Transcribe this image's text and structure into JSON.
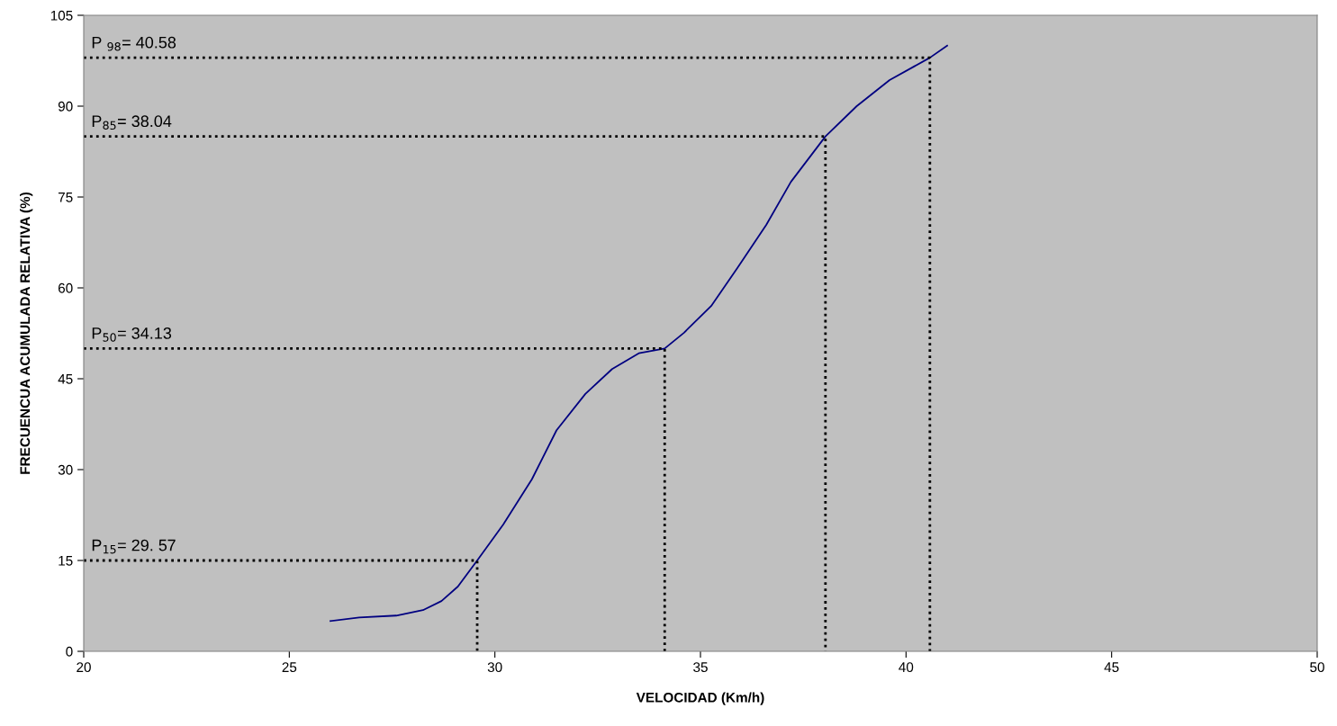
{
  "chart_data": {
    "type": "line",
    "xlabel": "VELOCIDAD (Km/h)",
    "ylabel": "FRECUENCUA ACUMULADA RELATIVA (%)",
    "xlim": [
      20,
      50
    ],
    "xticks": [
      20,
      25,
      30,
      35,
      40,
      45,
      50
    ],
    "ylim": [
      0,
      105
    ],
    "yticks": [
      0,
      15,
      30,
      45,
      60,
      75,
      90,
      105
    ],
    "grid": false,
    "legend": false,
    "marker": "none",
    "series": [
      {
        "color": "#000080",
        "line_style": "solid",
        "x": [
          26.0,
          26.7,
          27.6,
          28.25,
          28.7,
          29.1,
          29.57,
          30.2,
          30.9,
          31.5,
          32.2,
          32.85,
          33.5,
          34.13,
          34.6,
          35.26,
          35.9,
          36.6,
          37.2,
          38.04,
          38.8,
          39.6,
          40.58,
          41.0
        ],
        "values": [
          5.0,
          5.6,
          5.9,
          6.8,
          8.3,
          10.7,
          15,
          20.9,
          28.4,
          36.5,
          42.5,
          46.6,
          49.2,
          50,
          52.6,
          57,
          63.3,
          70.4,
          77.5,
          85,
          90,
          94.3,
          98,
          100
        ]
      },
      {
        "color": "#000000",
        "line_style": "dotted",
        "x": [
          20,
          29.57,
          29.57
        ],
        "values": [
          15,
          15,
          0
        ]
      },
      {
        "color": "#000000",
        "line_style": "dotted",
        "x": [
          20,
          34.13,
          34.13
        ],
        "values": [
          50,
          50,
          0
        ]
      },
      {
        "color": "#000000",
        "line_style": "dotted",
        "x": [
          20,
          38.04,
          38.04
        ],
        "values": [
          85,
          85,
          0
        ]
      },
      {
        "color": "#000000",
        "line_style": "dotted",
        "x": [
          20,
          40.58,
          40.58
        ],
        "values": [
          98,
          98,
          0
        ]
      }
    ],
    "annotations": [
      "P$_{15}$= 29. 57",
      "P$_{50}$= 34.13",
      "P$_{85}$= 38.04",
      "P $_{98}$= 40.58"
    ]
  }
}
